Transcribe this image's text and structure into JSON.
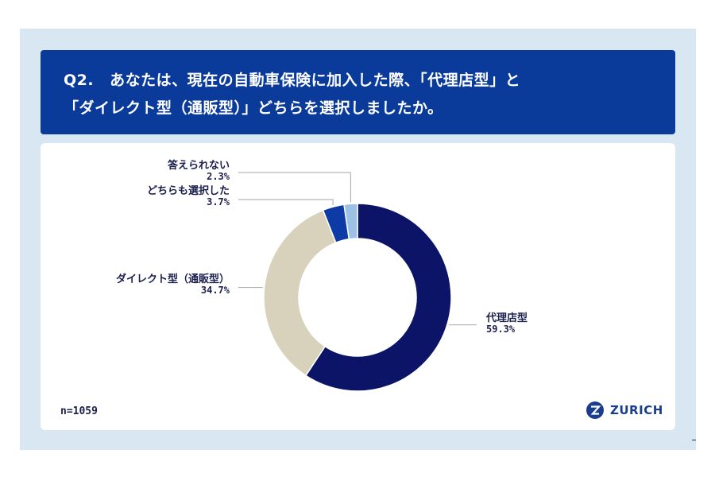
{
  "question": {
    "number": "Q2.",
    "line1": "あなたは、現在の自動車保険に加入した際、「代理店型」と",
    "line2": "「ダイレクト型（通販型）」どちらを選択しましたか。"
  },
  "sample_size": "n=1059",
  "brand": {
    "name": "ZURICH",
    "color": "#1a3e8c"
  },
  "colors": {
    "header_bg": "#0a3a9a",
    "slide_bg": "#d9e7f3"
  },
  "chart_data": {
    "type": "pie",
    "donut": true,
    "slices": [
      {
        "label": "代理店型",
        "value": 59.3,
        "value_label": "59.3%",
        "color": "#0b1467"
      },
      {
        "label": "ダイレクト型（通販型）",
        "value": 34.7,
        "value_label": "34.7%",
        "color": "#d8d2bd"
      },
      {
        "label": "どちらも選択した",
        "value": 3.7,
        "value_label": "3.7%",
        "color": "#0d3aa4"
      },
      {
        "label": "答えられない",
        "value": 2.3,
        "value_label": "2.3%",
        "color": "#9cc1e4"
      }
    ]
  }
}
